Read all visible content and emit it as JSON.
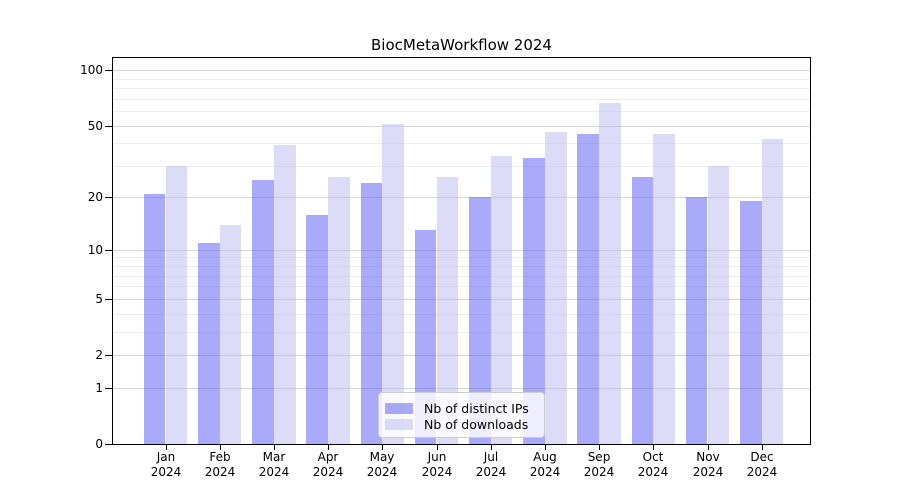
{
  "chart_data": {
    "type": "bar",
    "title": "BiocMetaWorkflow 2024",
    "categories": [
      "Jan",
      "Feb",
      "Mar",
      "Apr",
      "May",
      "Jun",
      "Jul",
      "Aug",
      "Sep",
      "Oct",
      "Nov",
      "Dec"
    ],
    "year": "2024",
    "series": [
      {
        "name": "Nb of distinct IPs",
        "color": "rgba(85,85,245,0.5)",
        "color_hex": "#aaaaf9",
        "values": [
          21,
          11,
          25,
          16,
          24,
          13,
          20,
          33,
          45,
          26,
          20,
          19
        ]
      },
      {
        "name": "Nb of downloads",
        "color": "rgba(185,185,243,0.5)",
        "color_hex": "#dcdcf9",
        "values": [
          30,
          14,
          39,
          26,
          51,
          26,
          34,
          46,
          66,
          45,
          30,
          42
        ]
      }
    ],
    "yscale": "log1p",
    "ylim": [
      0,
      118
    ],
    "y_major_ticks": [
      0,
      1,
      2,
      5,
      10,
      20,
      50,
      100
    ],
    "y_minor_ticks": [
      3,
      4,
      6,
      7,
      8,
      9,
      30,
      40,
      60,
      70,
      80,
      90
    ],
    "grid": "horizontal",
    "legend_position": "lower center"
  },
  "legend": {
    "items": [
      {
        "label": "Nb of distinct IPs"
      },
      {
        "label": "Nb of downloads"
      }
    ]
  }
}
